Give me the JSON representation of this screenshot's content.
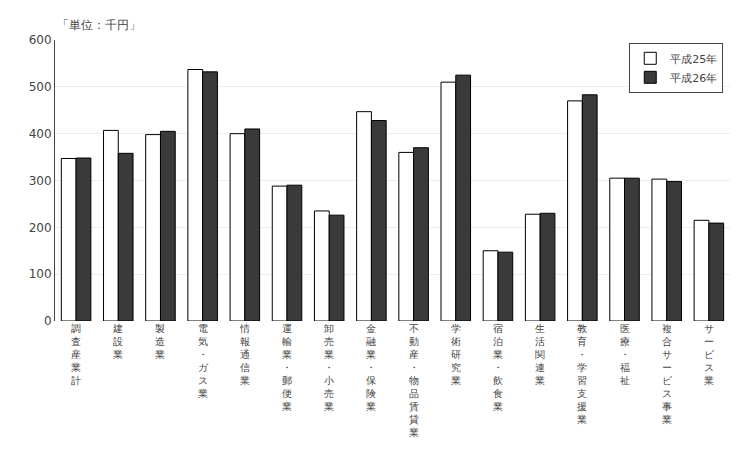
{
  "chart_data": {
    "type": "bar",
    "categories": [
      "調査産業計",
      "建設業",
      "製造業",
      "電気・ガス業",
      "情報通信業",
      "運輸業・郵便業",
      "卸売業・小売業",
      "金融業・保険業",
      "不動産・物品賃貸業",
      "学術研究業",
      "宿泊業・飲食業",
      "生活関連業",
      "教育・学習支援業",
      "医療・福祉",
      "複合サービス事業",
      "サービス業"
    ],
    "series": [
      {
        "name": "平成25年",
        "color": "#ffffff",
        "values": [
          347,
          407,
          398,
          537,
          400,
          288,
          235,
          447,
          360,
          510,
          150,
          228,
          470,
          305,
          303,
          215
        ]
      },
      {
        "name": "平成26年",
        "color": "#3a3a3a",
        "values": [
          348,
          358,
          405,
          532,
          410,
          290,
          226,
          428,
          370,
          525,
          147,
          230,
          483,
          305,
          298,
          209
        ]
      }
    ],
    "annotations": [
      "「単位：千円」"
    ],
    "ylim": [
      0,
      600
    ],
    "yticks": [
      0,
      100,
      200,
      300,
      400,
      500,
      600
    ],
    "grid": true,
    "legend": "upper right"
  }
}
